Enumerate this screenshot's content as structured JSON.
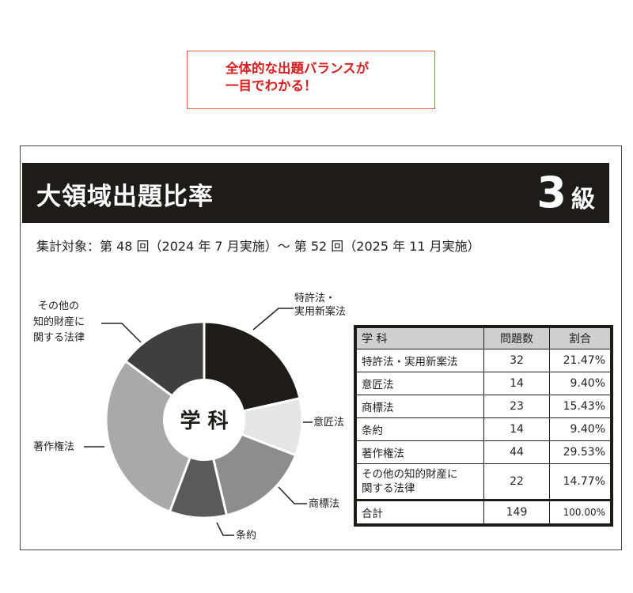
{
  "callout": {
    "line1": "全体的な出題バランスが",
    "line2": "一目でわかる！"
  },
  "header": {
    "title": "大領域出題比率",
    "level_number": "3",
    "level_suffix": "級"
  },
  "subtitle": "集計対象：第 48 回（2024 年 7 月実施）～ 第 52 回（2025 年 11 月実施）",
  "chart_data": {
    "type": "pie",
    "center_label": "学 科",
    "categories": [
      "特許法・実用新案法",
      "意匠法",
      "商標法",
      "条約",
      "著作権法",
      "その他の知的財産に関する法律"
    ],
    "values": [
      32,
      14,
      23,
      14,
      44,
      22
    ],
    "colors": [
      "#1e1b1b",
      "#e6e6e6",
      "#8d8d8d",
      "#5a5a5a",
      "#a9a9a9",
      "#3f3f3f"
    ],
    "slice_labels": [
      [
        "特許法・",
        "実用新案法"
      ],
      [
        "意匠法"
      ],
      [
        "商標法"
      ],
      [
        "条約"
      ],
      [
        "著作権法"
      ],
      [
        "その他の",
        "知的財産に",
        "関する法律"
      ]
    ]
  },
  "table": {
    "headers": [
      "学 科",
      "問題数",
      "割合"
    ],
    "rows": [
      {
        "subject": "特許法・実用新案法",
        "count": "32",
        "ratio": "21.47%"
      },
      {
        "subject": "意匠法",
        "count": "14",
        "ratio": "9.40%"
      },
      {
        "subject": "商標法",
        "count": "23",
        "ratio": "15.43%"
      },
      {
        "subject": "条約",
        "count": "14",
        "ratio": "9.40%"
      },
      {
        "subject": "著作権法",
        "count": "44",
        "ratio": "29.53%"
      },
      {
        "subject_line1": "その他の知的財産に",
        "subject_line2": "関する法律",
        "count": "22",
        "ratio": "14.77%"
      }
    ],
    "total": {
      "subject": "合計",
      "count": "149",
      "ratio": "100.00%"
    }
  }
}
